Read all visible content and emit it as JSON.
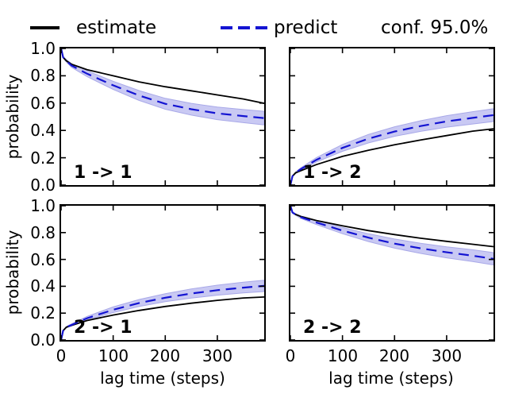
{
  "legend": {
    "estimate_label": "estimate",
    "predict_label": "predict",
    "conf_label": "conf. 95.0%"
  },
  "colors": {
    "estimate": "#000000",
    "predict": "#1414d2",
    "band": "#c9c9f3",
    "band_edge": "#a9a9e8",
    "axis": "#000000"
  },
  "axes": {
    "xlabel": "lag time (steps)",
    "ylabel": "probability",
    "xlim": [
      0,
      390
    ],
    "ylim": [
      0,
      1
    ],
    "xtick_values": [
      0,
      100,
      200,
      300
    ],
    "xtick_labels": [
      "0",
      "100",
      "200",
      "300"
    ],
    "ytick_values": [
      0,
      0.2,
      0.4,
      0.6,
      0.8,
      1.0
    ],
    "ytick_labels_top_down": [
      "1.0",
      "0.8",
      "0.6",
      "0.4",
      "0.2",
      "0.0"
    ]
  },
  "chart_data": [
    {
      "type": "line",
      "name": "1 -> 1",
      "xlabel": "lag time (steps)",
      "ylabel": "probability",
      "x": [
        0,
        4,
        10,
        20,
        50,
        100,
        150,
        200,
        250,
        300,
        350,
        390
      ],
      "estimate": [
        1.0,
        0.935,
        0.91,
        0.885,
        0.845,
        0.8,
        0.755,
        0.72,
        0.69,
        0.66,
        0.63,
        0.598
      ],
      "predict": [
        1.0,
        0.935,
        0.91,
        0.875,
        0.815,
        0.73,
        0.655,
        0.595,
        0.555,
        0.525,
        0.505,
        0.49
      ],
      "band_lower": [
        0.996,
        0.929,
        0.901,
        0.862,
        0.794,
        0.7,
        0.619,
        0.555,
        0.512,
        0.479,
        0.457,
        0.44
      ],
      "band_upper": [
        1.0,
        0.941,
        0.919,
        0.888,
        0.836,
        0.76,
        0.691,
        0.635,
        0.598,
        0.571,
        0.553,
        0.54
      ]
    },
    {
      "type": "line",
      "name": "1 -> 2",
      "xlabel": "lag time (steps)",
      "ylabel": "probability",
      "x": [
        0,
        4,
        10,
        20,
        50,
        100,
        150,
        200,
        250,
        300,
        350,
        390
      ],
      "estimate": [
        0.0,
        0.065,
        0.09,
        0.105,
        0.15,
        0.21,
        0.255,
        0.295,
        0.33,
        0.362,
        0.395,
        0.412
      ],
      "predict": [
        0.0,
        0.065,
        0.09,
        0.117,
        0.185,
        0.272,
        0.34,
        0.392,
        0.432,
        0.466,
        0.492,
        0.512
      ],
      "band_lower": [
        0.0,
        0.061,
        0.084,
        0.108,
        0.169,
        0.247,
        0.309,
        0.357,
        0.393,
        0.424,
        0.447,
        0.465
      ],
      "band_upper": [
        0.002,
        0.069,
        0.096,
        0.126,
        0.201,
        0.297,
        0.371,
        0.427,
        0.471,
        0.508,
        0.537,
        0.559
      ]
    },
    {
      "type": "line",
      "name": "2 -> 1",
      "xlabel": "lag time (steps)",
      "ylabel": "probability",
      "x": [
        0,
        4,
        10,
        20,
        50,
        100,
        150,
        200,
        250,
        300,
        350,
        390
      ],
      "estimate": [
        0.0,
        0.07,
        0.095,
        0.108,
        0.145,
        0.186,
        0.22,
        0.25,
        0.274,
        0.295,
        0.313,
        0.32
      ],
      "predict": [
        0.0,
        0.07,
        0.095,
        0.112,
        0.162,
        0.225,
        0.276,
        0.315,
        0.346,
        0.371,
        0.39,
        0.403
      ],
      "band_lower": [
        0.0,
        0.067,
        0.09,
        0.104,
        0.148,
        0.204,
        0.25,
        0.285,
        0.312,
        0.334,
        0.35,
        0.361
      ],
      "band_upper": [
        0.002,
        0.073,
        0.1,
        0.12,
        0.176,
        0.246,
        0.302,
        0.345,
        0.38,
        0.408,
        0.43,
        0.445
      ]
    },
    {
      "type": "line",
      "name": "2 -> 2",
      "xlabel": "lag time (steps)",
      "ylabel": "probability",
      "x": [
        0,
        4,
        10,
        20,
        50,
        100,
        150,
        200,
        250,
        300,
        350,
        390
      ],
      "estimate": [
        1.0,
        0.95,
        0.935,
        0.92,
        0.89,
        0.85,
        0.815,
        0.785,
        0.758,
        0.735,
        0.713,
        0.695
      ],
      "predict": [
        1.0,
        0.95,
        0.935,
        0.915,
        0.875,
        0.815,
        0.762,
        0.718,
        0.683,
        0.653,
        0.628,
        0.605
      ],
      "band_lower": [
        0.998,
        0.946,
        0.929,
        0.906,
        0.86,
        0.792,
        0.733,
        0.684,
        0.645,
        0.612,
        0.584,
        0.559
      ],
      "band_upper": [
        1.0,
        0.954,
        0.941,
        0.924,
        0.89,
        0.838,
        0.791,
        0.752,
        0.721,
        0.694,
        0.672,
        0.651
      ]
    }
  ]
}
